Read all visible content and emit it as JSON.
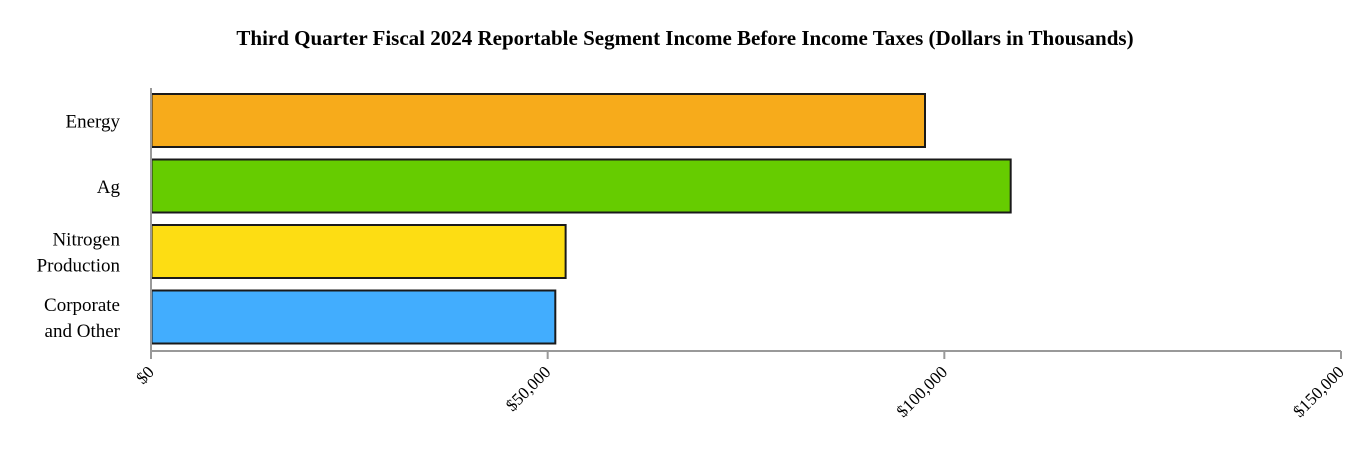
{
  "chart_data": {
    "type": "bar",
    "orientation": "horizontal",
    "title": "Third Quarter Fiscal 2024 Reportable Segment Income Before Income Taxes (Dollars in Thousands)",
    "categories": [
      [
        "Energy"
      ],
      [
        "Ag"
      ],
      [
        "Nitrogen",
        "Production"
      ],
      [
        "Corporate",
        "and Other"
      ]
    ],
    "values": [
      97500,
      108300,
      52200,
      50900
    ],
    "colors": [
      "#f7ab1b",
      "#66cc00",
      "#fddd13",
      "#42adfe"
    ],
    "xlim": [
      0,
      150000
    ],
    "ticks": [
      0,
      50000,
      100000,
      150000
    ],
    "tick_labels": [
      "$0",
      "$50,000",
      "$100,000",
      "$150,000"
    ],
    "xlabel": "",
    "ylabel": "",
    "grid": false,
    "legend": "none"
  }
}
